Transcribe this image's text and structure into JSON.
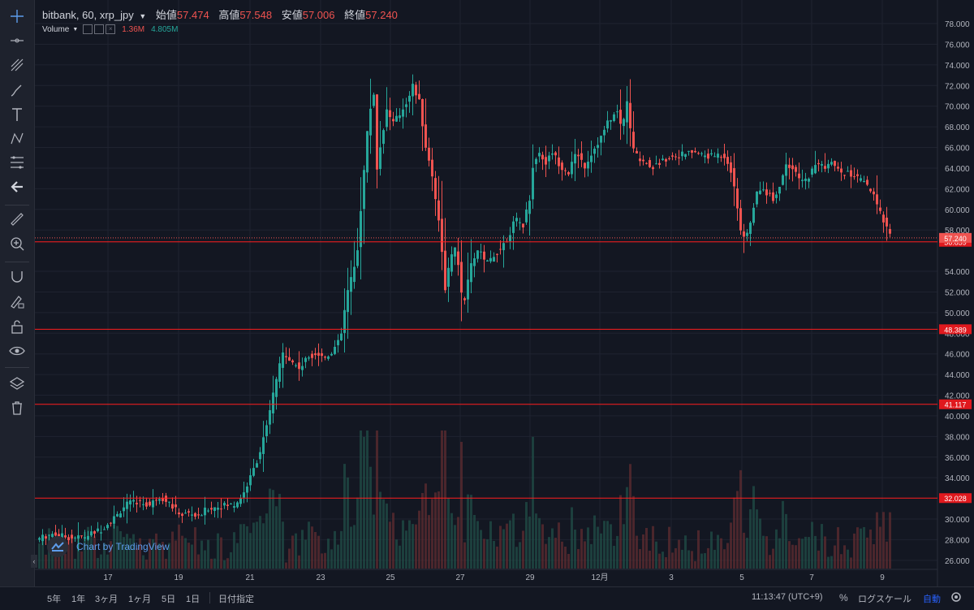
{
  "legend": {
    "symbol": "bitbank, 60, xrp_jpy",
    "open_label": "始値",
    "open": "57.474",
    "high_label": "高値",
    "high": "57.548",
    "low_label": "安値",
    "low": "57.006",
    "close_label": "終値",
    "close": "57.240"
  },
  "volume_legend": {
    "label": "Volume",
    "value1": "1.36M",
    "value2": "4.805M"
  },
  "watermark": {
    "text": "Chart by TradingView"
  },
  "bottombar": {
    "periods": [
      "5年",
      "1年",
      "3ヶ月",
      "1ヶ月",
      "5日",
      "1日"
    ],
    "goto_date": "日付指定",
    "time": "11:13:47 (UTC+9)",
    "percent": "%",
    "log_scale": "ログスケール",
    "auto": "自動"
  },
  "icons": [
    "crosshair-icon",
    "trendline-icon",
    "pitchfork-icon",
    "brush-icon",
    "text-icon",
    "pattern-icon",
    "fib-icon",
    "back-arrow-icon",
    "ruler-icon",
    "zoom-icon",
    "magnet-icon",
    "lock-pencil-icon",
    "lock-icon",
    "eye-icon",
    "layers-icon",
    "trash-icon"
  ],
  "colors": {
    "up": "#26a69a",
    "down": "#ef5350",
    "background": "#131722",
    "level": "#ff1e1e"
  },
  "chart_data": {
    "type": "candlestick",
    "y_axis_ticks": [
      "78.000",
      "76.000",
      "74.000",
      "72.000",
      "70.000",
      "68.000",
      "66.000",
      "64.000",
      "62.000",
      "60.000",
      "58.000",
      "54.000",
      "52.000",
      "50.000",
      "48.000",
      "46.000",
      "44.000",
      "42.000",
      "40.000",
      "38.000",
      "36.000",
      "34.000",
      "30.000",
      "28.000",
      "26.000"
    ],
    "x_axis_ticks": [
      "17",
      "19",
      "21",
      "23",
      "25",
      "27",
      "29",
      "12月",
      "3",
      "5",
      "7",
      "9"
    ],
    "ylim": [
      25.2,
      79.5
    ],
    "current_price": {
      "value": 57.24,
      "label": "57.240"
    },
    "horizontal_levels": [
      {
        "value": 56.859,
        "label": "56.859"
      },
      {
        "value": 48.389,
        "label": "48.389"
      },
      {
        "value": 41.117,
        "label": "41.117"
      },
      {
        "value": 32.028,
        "label": "32.028"
      }
    ],
    "price_path": [
      [
        0,
        28.0
      ],
      [
        20,
        28.6
      ],
      [
        40,
        28.2
      ],
      [
        60,
        28.3
      ],
      [
        80,
        29.0
      ],
      [
        100,
        30.4
      ],
      [
        110,
        31.4
      ],
      [
        125,
        31.7
      ],
      [
        140,
        31.3
      ],
      [
        150,
        32.2
      ],
      [
        160,
        31.9
      ],
      [
        170,
        31.0
      ],
      [
        180,
        30.4
      ],
      [
        190,
        30.6
      ],
      [
        200,
        30.1
      ],
      [
        210,
        31.0
      ],
      [
        230,
        31.3
      ],
      [
        245,
        31.4
      ],
      [
        255,
        32.4
      ],
      [
        265,
        34.2
      ],
      [
        275,
        36.3
      ],
      [
        285,
        39.2
      ],
      [
        295,
        43.3
      ],
      [
        305,
        46.3
      ],
      [
        315,
        45.2
      ],
      [
        325,
        44.6
      ],
      [
        335,
        45.7
      ],
      [
        345,
        46.1
      ],
      [
        355,
        45.6
      ],
      [
        365,
        46.3
      ],
      [
        375,
        47.4
      ],
      [
        383,
        51.8
      ],
      [
        395,
        55.2
      ],
      [
        402,
        62.0
      ],
      [
        410,
        69.2
      ],
      [
        416,
        71.2
      ],
      [
        420,
        64.0
      ],
      [
        426,
        67.1
      ],
      [
        432,
        69.6
      ],
      [
        440,
        68.4
      ],
      [
        448,
        69.2
      ],
      [
        456,
        70.4
      ],
      [
        464,
        72.0
      ],
      [
        472,
        70.4
      ],
      [
        480,
        66.1
      ],
      [
        488,
        63.2
      ],
      [
        496,
        59.1
      ],
      [
        504,
        52.4
      ],
      [
        510,
        55.1
      ],
      [
        518,
        56.4
      ],
      [
        526,
        50.1
      ],
      [
        532,
        53.2
      ],
      [
        538,
        55.2
      ],
      [
        546,
        56.1
      ],
      [
        554,
        54.6
      ],
      [
        562,
        55.4
      ],
      [
        572,
        56.2
      ],
      [
        582,
        57.4
      ],
      [
        590,
        59.0
      ],
      [
        600,
        58.5
      ],
      [
        608,
        61.1
      ],
      [
        612,
        64.2
      ],
      [
        620,
        65.5
      ],
      [
        628,
        64.5
      ],
      [
        636,
        65.6
      ],
      [
        646,
        64.2
      ],
      [
        656,
        63.6
      ],
      [
        666,
        65.6
      ],
      [
        676,
        64.2
      ],
      [
        686,
        65.7
      ],
      [
        696,
        67.0
      ],
      [
        706,
        68.7
      ],
      [
        716,
        69.4
      ],
      [
        722,
        67.7
      ],
      [
        728,
        70.6
      ],
      [
        734,
        66.2
      ],
      [
        740,
        65.2
      ],
      [
        750,
        64.6
      ],
      [
        760,
        64.1
      ],
      [
        770,
        64.6
      ],
      [
        780,
        65.1
      ],
      [
        790,
        65.2
      ],
      [
        800,
        65.4
      ],
      [
        810,
        65.6
      ],
      [
        820,
        65.3
      ],
      [
        830,
        65.1
      ],
      [
        840,
        65.3
      ],
      [
        850,
        65.1
      ],
      [
        856,
        63.7
      ],
      [
        862,
        61.1
      ],
      [
        868,
        58.1
      ],
      [
        874,
        56.9
      ],
      [
        880,
        58.9
      ],
      [
        886,
        61.1
      ],
      [
        892,
        62.1
      ],
      [
        900,
        61.6
      ],
      [
        908,
        61.1
      ],
      [
        916,
        62.2
      ],
      [
        924,
        64.6
      ],
      [
        930,
        64.1
      ],
      [
        938,
        63.1
      ],
      [
        946,
        62.6
      ],
      [
        954,
        63.5
      ],
      [
        962,
        64.6
      ],
      [
        970,
        64.1
      ],
      [
        980,
        64.5
      ],
      [
        990,
        63.6
      ],
      [
        1000,
        63.5
      ],
      [
        1010,
        63.1
      ],
      [
        1020,
        62.6
      ],
      [
        1030,
        61.6
      ],
      [
        1040,
        59.6
      ],
      [
        1050,
        58.1
      ],
      [
        1055,
        57.24
      ]
    ]
  }
}
